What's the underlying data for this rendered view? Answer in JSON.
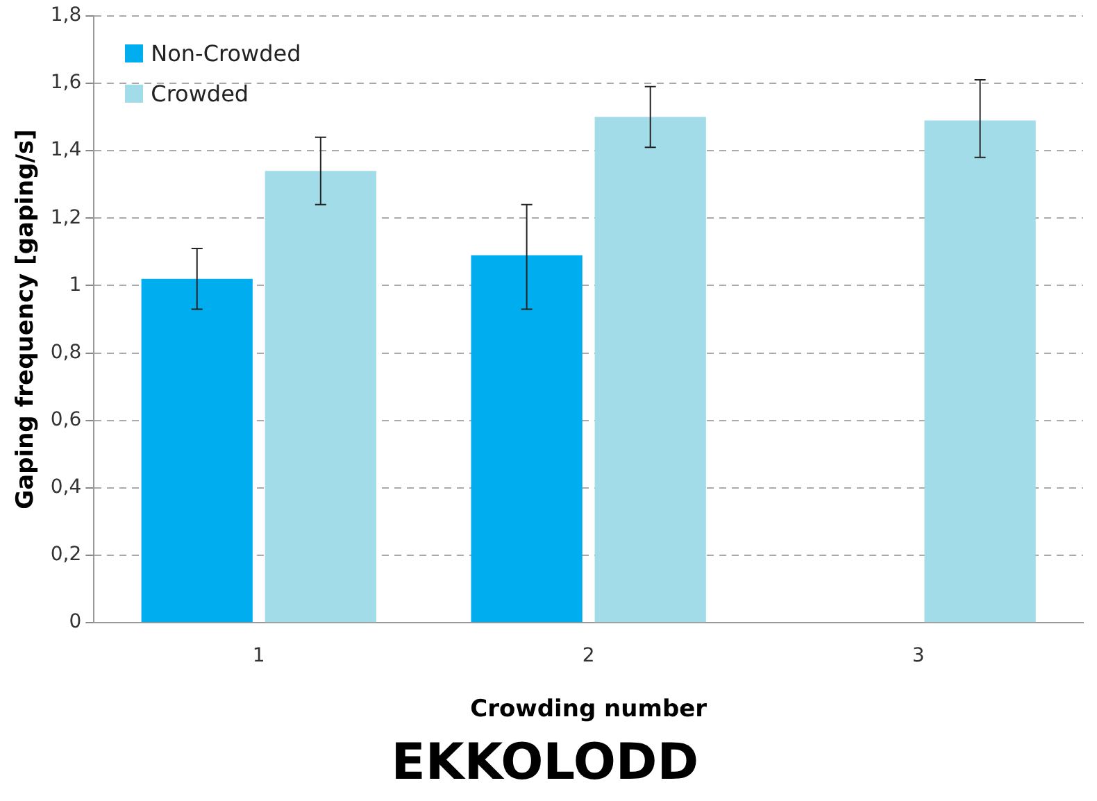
{
  "chart_data": {
    "type": "bar",
    "title": "EKKOLODD",
    "xlabel": "Crowding number",
    "ylabel": "Gaping frequency [gaping/s]",
    "categories": [
      "1",
      "2",
      "3"
    ],
    "series": [
      {
        "name": "Non-Crowded",
        "color": "#00aeef",
        "values": [
          1.02,
          1.09,
          null
        ],
        "errors": [
          [
            0.93,
            1.11
          ],
          [
            0.93,
            1.24
          ],
          null
        ]
      },
      {
        "name": "Crowded",
        "color": "#a2dce8",
        "values": [
          1.34,
          1.5,
          1.49
        ],
        "errors": [
          [
            1.24,
            1.44
          ],
          [
            1.41,
            1.59
          ],
          [
            1.38,
            1.61
          ]
        ]
      }
    ],
    "ylim": [
      0,
      1.8
    ],
    "yticks": [
      0,
      {
        "value": 0.2,
        "label": "0,2"
      },
      {
        "value": 0.4,
        "label": "0,4"
      },
      {
        "value": 0.6,
        "label": "0,6"
      },
      {
        "value": 0.8,
        "label": "0,8"
      },
      1,
      {
        "value": 1.2,
        "label": "1,2"
      },
      {
        "value": 1.4,
        "label": "1,4"
      },
      {
        "value": 1.6,
        "label": "1,6"
      },
      {
        "value": 1.8,
        "label": "1,8"
      }
    ],
    "grid": "y",
    "legend": "top left"
  }
}
